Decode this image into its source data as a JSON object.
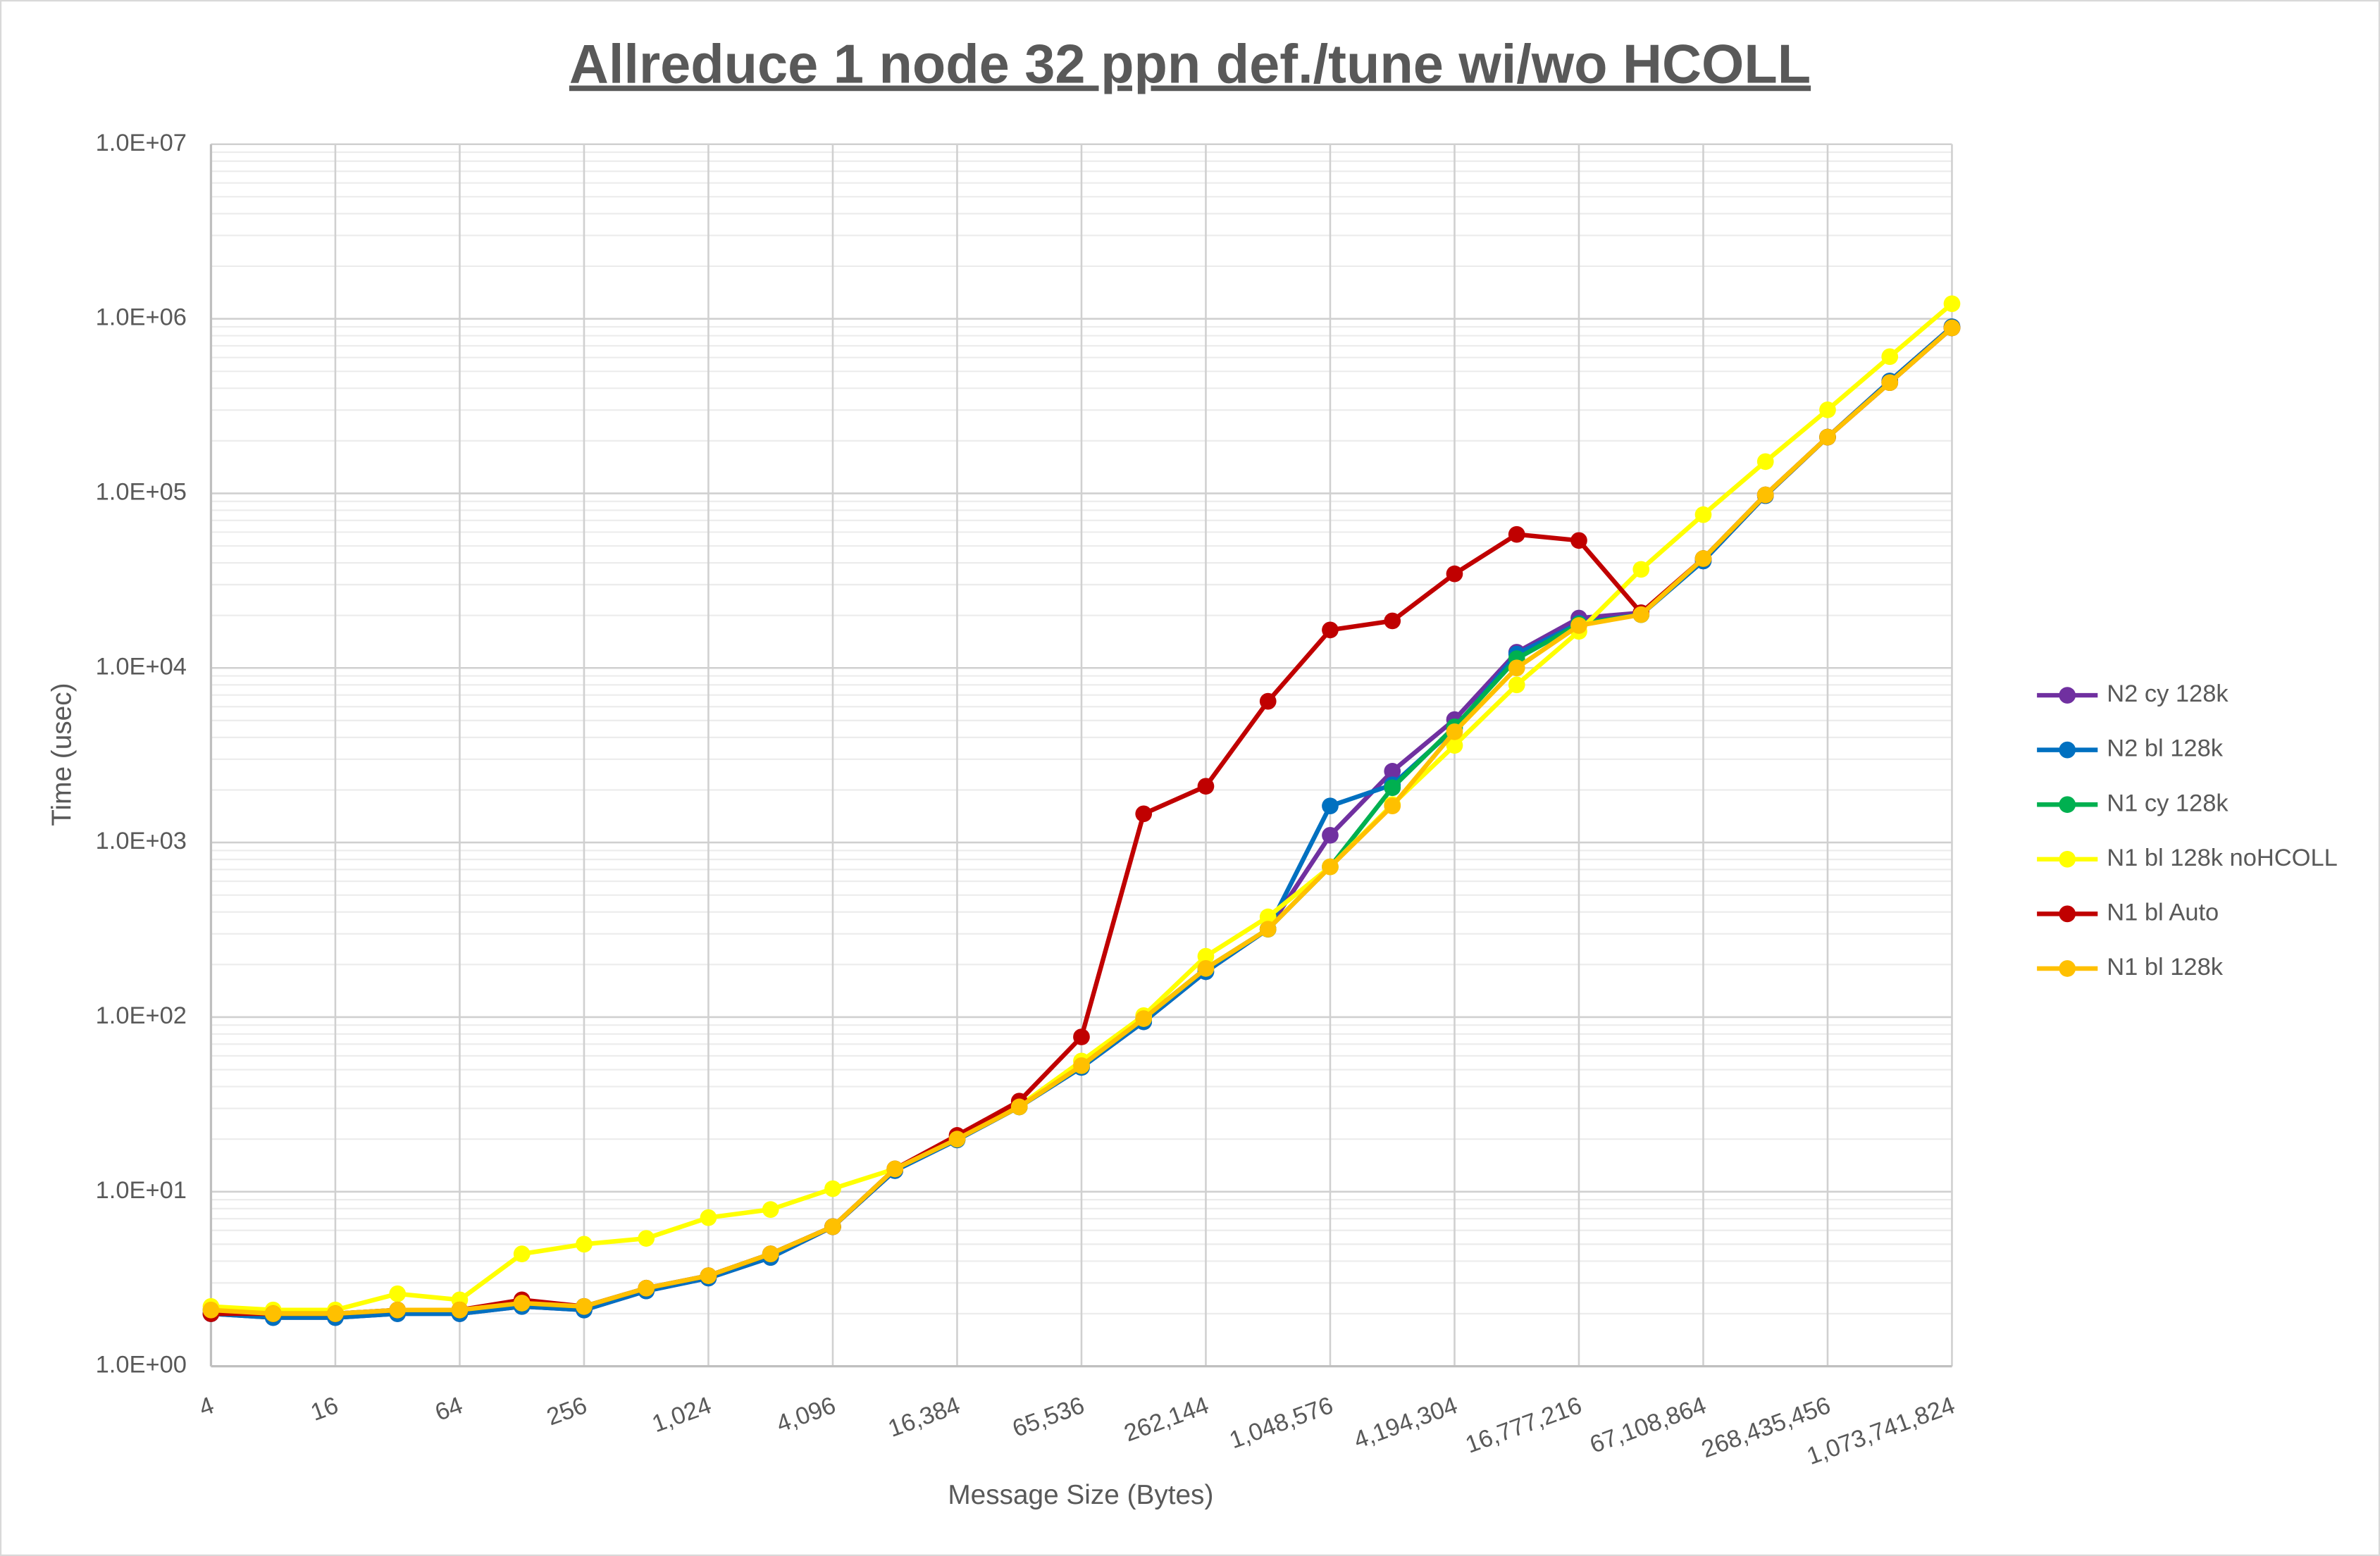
{
  "chart_data": {
    "type": "line",
    "title": "Allreduce 1 node 32 ppn def./tune wi/wo HCOLL",
    "x_label": "Message Size (Bytes)",
    "y_label": "Time (usec)",
    "x": [
      4,
      8,
      16,
      32,
      64,
      128,
      256,
      512,
      1024,
      2048,
      4096,
      8192,
      16384,
      32768,
      65536,
      131072,
      262144,
      524288,
      1048576,
      2097152,
      4194304,
      8388608,
      16777216,
      33554432,
      67108864,
      134217728,
      268435456,
      536870912,
      1073741824
    ],
    "xscale": "log",
    "xlim": [
      4,
      1073741824
    ],
    "xticks": [
      4,
      16,
      64,
      256,
      {
        "value": 1024,
        "label": "1,024"
      },
      {
        "value": 4096,
        "label": "4,096"
      },
      {
        "value": 16384,
        "label": "16,384"
      },
      {
        "value": 65536,
        "label": "65,536"
      },
      {
        "value": 262144,
        "label": "262,144"
      },
      {
        "value": 1048576,
        "label": "1,048,576"
      },
      {
        "value": 4194304,
        "label": "4,194,304"
      },
      {
        "value": 16777216,
        "label": "16,777,216"
      },
      {
        "value": 67108864,
        "label": "67,108,864"
      },
      {
        "value": 268435456,
        "label": "268,435,456"
      },
      {
        "value": 1073741824,
        "label": "1,073,741,824"
      }
    ],
    "yscale": "log",
    "ylim": [
      1,
      10000000
    ],
    "yticks": [
      {
        "value": 1,
        "label": "1.0E+00"
      },
      {
        "value": 10,
        "label": "1.0E+01"
      },
      {
        "value": 100,
        "label": "1.0E+02"
      },
      {
        "value": 1000,
        "label": "1.0E+03"
      },
      {
        "value": 10000,
        "label": "1.0E+04"
      },
      {
        "value": 100000,
        "label": "1.0E+05"
      },
      {
        "value": 1000000,
        "label": "1.0E+06"
      },
      {
        "value": 10000000,
        "label": "1.0E+07"
      }
    ],
    "grid": true,
    "minor_grid": true,
    "legend": "right",
    "series": [
      {
        "name": "N2 cy 128k",
        "color": "#7030a0",
        "values": [
          2.0,
          1.9,
          1.9,
          2.0,
          2.0,
          2.2,
          2.1,
          2.7,
          3.2,
          4.2,
          6.3,
          13.2,
          19.8,
          30.6,
          51.5,
          94,
          182,
          319,
          1100,
          2560,
          5060,
          12300,
          19300,
          20700,
          41000,
          97000,
          210000,
          440000,
          900000
        ]
      },
      {
        "name": "N2 bl 128k",
        "color": "#0070c0",
        "values": [
          2.0,
          1.9,
          1.9,
          2.0,
          2.0,
          2.2,
          2.1,
          2.7,
          3.2,
          4.2,
          6.3,
          13.2,
          19.8,
          30.6,
          51.5,
          94,
          182,
          319,
          1620,
          2140,
          4490,
          12000,
          18000,
          20200,
          41000,
          97000,
          210000,
          440000,
          900000
        ]
      },
      {
        "name": "N1 cy 128k",
        "color": "#00b050",
        "values": [
          2.1,
          2.0,
          2.0,
          2.1,
          2.1,
          2.3,
          2.2,
          2.8,
          3.3,
          4.4,
          6.3,
          13.5,
          20,
          30.6,
          52.7,
          98,
          190,
          319,
          726,
          2060,
          4600,
          11300,
          17800,
          20200,
          42300,
          98000,
          210000,
          431000,
          887000
        ]
      },
      {
        "name": "N1 bl 128k noHCOLL",
        "color": "#ffff00",
        "values": [
          2.2,
          2.1,
          2.1,
          2.6,
          2.4,
          4.4,
          5.0,
          5.4,
          7.1,
          7.9,
          10.4,
          13.5,
          20.2,
          31,
          56,
          102,
          223,
          375,
          726,
          1650,
          3600,
          8000,
          16200,
          36700,
          75500,
          152000,
          301000,
          607000,
          1220000
        ]
      },
      {
        "name": "N1 bl Auto",
        "color": "#c00000",
        "values": [
          2.0,
          2.0,
          2.0,
          2.1,
          2.1,
          2.4,
          2.2,
          2.8,
          3.3,
          4.4,
          6.3,
          13.5,
          21,
          33,
          77,
          1460,
          2100,
          6440,
          16500,
          18600,
          34600,
          58200,
          53700,
          20700,
          42300,
          98000,
          210000,
          431000,
          887000
        ]
      },
      {
        "name": "N1 bl 128k",
        "color": "#ffc000",
        "values": [
          2.1,
          2.0,
          2.0,
          2.1,
          2.1,
          2.3,
          2.2,
          2.8,
          3.3,
          4.4,
          6.3,
          13.5,
          20,
          30.6,
          52.7,
          98,
          190,
          319,
          726,
          1620,
          4310,
          10000,
          17500,
          20200,
          42300,
          98000,
          210000,
          431000,
          887000
        ]
      }
    ]
  }
}
